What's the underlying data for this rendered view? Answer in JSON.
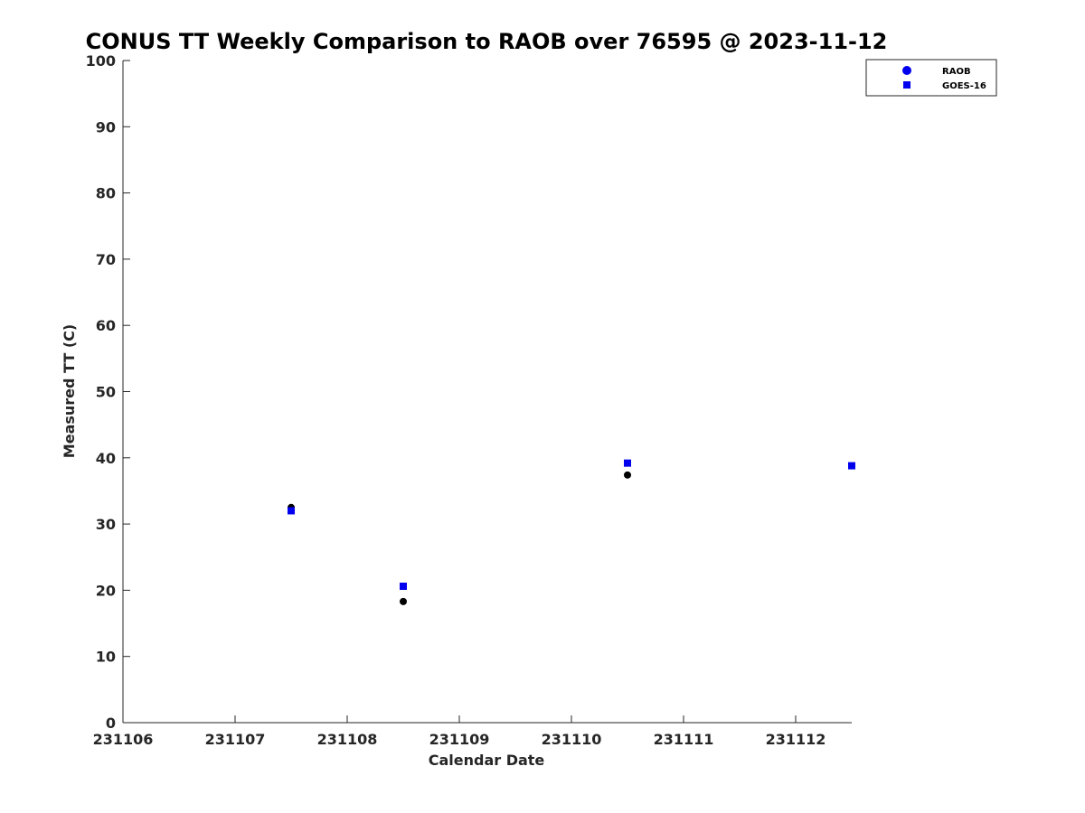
{
  "chart_data": {
    "type": "scatter",
    "title": "CONUS TT Weekly Comparison to RAOB over 76595 @ 2023-11-12",
    "xlabel": "Calendar Date",
    "ylabel": "Measured TT (C)",
    "xlim": [
      231106,
      231112.5
    ],
    "ylim": [
      0,
      100
    ],
    "xticks": [
      "231106",
      "231107",
      "231108",
      "231109",
      "231110",
      "231111",
      "231112"
    ],
    "yticks": [
      "0",
      "10",
      "20",
      "30",
      "40",
      "50",
      "60",
      "70",
      "80",
      "90",
      "100"
    ],
    "grid": false,
    "legend_position": "top-right",
    "legend": [
      "RAOB",
      "GOES-16"
    ],
    "series": [
      {
        "name": "RAOB",
        "marker": "circle",
        "color": "#000000",
        "legend_color": "#0000ee",
        "x": [
          231107.5,
          231108.5,
          231110.5
        ],
        "y": [
          32.5,
          18.3,
          37.4
        ]
      },
      {
        "name": "GOES-16",
        "marker": "square",
        "color": "#0000ee",
        "x": [
          231107.5,
          231108.5,
          231110.5,
          231112.5
        ],
        "y": [
          32.0,
          20.6,
          39.2,
          38.8
        ]
      }
    ]
  }
}
